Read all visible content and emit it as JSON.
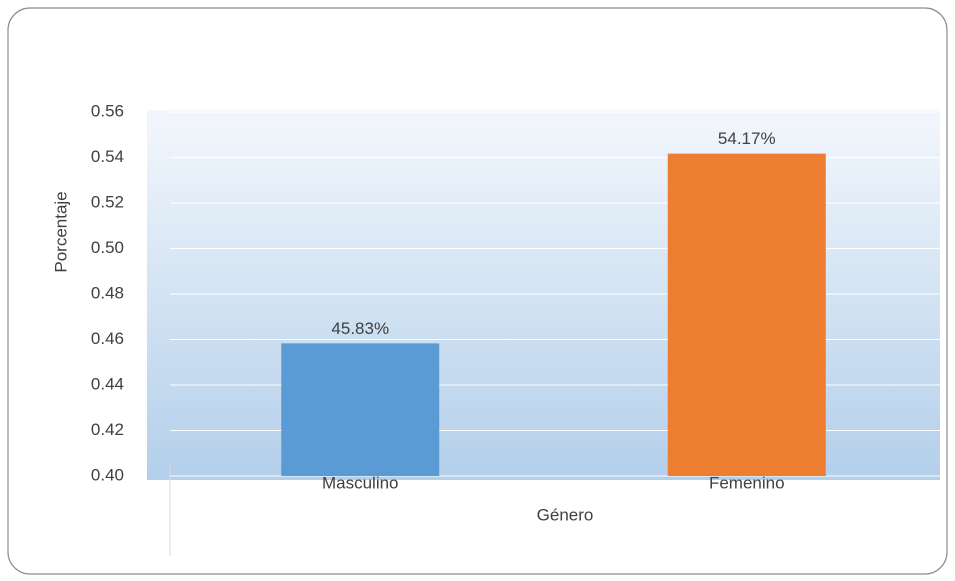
{
  "chart_data": {
    "type": "bar",
    "categories": [
      "Masculino",
      "Femenino"
    ],
    "values": [
      0.4583,
      0.5417
    ],
    "value_labels": [
      "45.83%",
      "54.17%"
    ],
    "colors": [
      "#5b9bd5",
      "#ed7d31"
    ],
    "xlabel": "Género",
    "ylabel": "Porcentaje",
    "ylim": [
      0.4,
      0.56
    ],
    "yticks": [
      {
        "value": 0.4,
        "label": "0.40"
      },
      {
        "value": 0.42,
        "label": "0.42"
      },
      {
        "value": 0.44,
        "label": "0.44"
      },
      {
        "value": 0.46,
        "label": "0.46"
      },
      {
        "value": 0.48,
        "label": "0.48"
      },
      {
        "value": 0.5,
        "label": "0.50"
      },
      {
        "value": 0.52,
        "label": "0.52"
      },
      {
        "value": 0.54,
        "label": "0.54"
      },
      {
        "value": 0.56,
        "label": "0.56"
      }
    ],
    "grid": true
  }
}
